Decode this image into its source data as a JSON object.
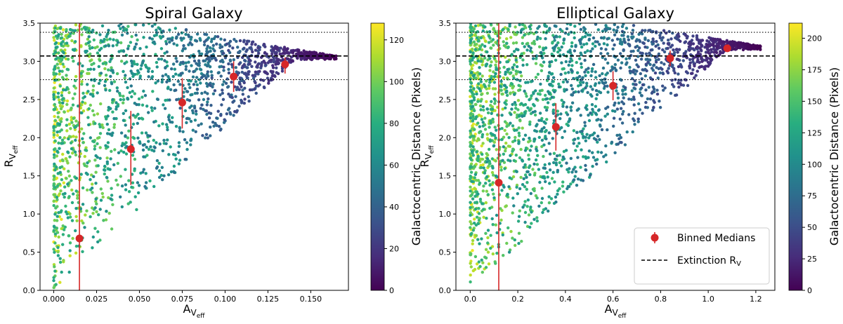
{
  "chart_data": [
    {
      "type": "scatter",
      "title": "Spiral Galaxy",
      "xlabel": "A",
      "xlabel_subscript": "V",
      "xlabel_subsubscript": "eff",
      "ylabel": "R",
      "ylabel_subscript": "V",
      "ylabel_subsubscript": "eff",
      "xlim": [
        -0.008,
        0.172
      ],
      "ylim": [
        0.0,
        3.5
      ],
      "xticks": [
        "0.000",
        "0.025",
        "0.050",
        "0.075",
        "0.100",
        "0.125",
        "0.150"
      ],
      "xtick_values": [
        0.0,
        0.025,
        0.05,
        0.075,
        0.1,
        0.125,
        0.15
      ],
      "yticks": [
        "0.0",
        "0.5",
        "1.0",
        "1.5",
        "2.0",
        "2.5",
        "3.0",
        "3.5"
      ],
      "ytick_values": [
        0.0,
        0.5,
        1.0,
        1.5,
        2.0,
        2.5,
        3.0,
        3.5
      ],
      "reference_line_dashed": 3.07,
      "reference_lines_dotted": [
        2.76,
        3.38
      ],
      "colorbar": {
        "label": "Galactocentric Distance (Pixels)",
        "range": [
          0,
          128
        ],
        "ticks": [
          "0",
          "20",
          "40",
          "60",
          "80",
          "100",
          "120"
        ],
        "tick_values": [
          0,
          20,
          40,
          60,
          80,
          100,
          120
        ],
        "colormap": "viridis"
      },
      "binned_medians": [
        {
          "x": 0.015,
          "y": 0.68,
          "yerr_low": 0.0,
          "yerr_high": 3.5
        },
        {
          "x": 0.045,
          "y": 1.85,
          "yerr_low": 1.38,
          "yerr_high": 2.35
        },
        {
          "x": 0.075,
          "y": 2.46,
          "yerr_low": 2.12,
          "yerr_high": 2.78
        },
        {
          "x": 0.105,
          "y": 2.8,
          "yerr_low": 2.6,
          "yerr_high": 3.0
        },
        {
          "x": 0.135,
          "y": 2.96,
          "yerr_low": 2.84,
          "yerr_high": 3.05
        }
      ],
      "scatter_envelope": {
        "x_max": 0.165,
        "y_plateau": 3.07,
        "slope": 33,
        "n_points": 1800
      }
    },
    {
      "type": "scatter",
      "title": "Elliptical Galaxy",
      "xlabel": "A",
      "xlabel_subscript": "V",
      "xlabel_subsubscript": "eff",
      "ylabel": "R",
      "ylabel_subscript": "V",
      "ylabel_subsubscript": "eff",
      "xlim": [
        -0.06,
        1.28
      ],
      "ylim": [
        0.0,
        3.5
      ],
      "xticks": [
        "0.0",
        "0.2",
        "0.4",
        "0.6",
        "0.8",
        "1.0",
        "1.2"
      ],
      "xtick_values": [
        0.0,
        0.2,
        0.4,
        0.6,
        0.8,
        1.0,
        1.2
      ],
      "yticks": [
        "0.0",
        "0.5",
        "1.0",
        "1.5",
        "2.0",
        "2.5",
        "3.0",
        "3.5"
      ],
      "ytick_values": [
        0.0,
        0.5,
        1.0,
        1.5,
        2.0,
        2.5,
        3.0,
        3.5
      ],
      "reference_line_dashed": 3.07,
      "reference_lines_dotted": [
        2.76,
        3.38
      ],
      "colorbar": {
        "label": "Galactocentric Distance (Pixels)",
        "range": [
          0,
          212
        ],
        "ticks": [
          "0",
          "25",
          "50",
          "75",
          "100",
          "125",
          "150",
          "175",
          "200"
        ],
        "tick_values": [
          0,
          25,
          50,
          75,
          100,
          125,
          150,
          175,
          200
        ],
        "colormap": "viridis"
      },
      "binned_medians": [
        {
          "x": 0.12,
          "y": 1.41,
          "yerr_low": 0.0,
          "yerr_high": 3.5
        },
        {
          "x": 0.36,
          "y": 2.14,
          "yerr_low": 1.83,
          "yerr_high": 2.45
        },
        {
          "x": 0.6,
          "y": 2.68,
          "yerr_low": 2.49,
          "yerr_high": 2.87
        },
        {
          "x": 0.84,
          "y": 3.04,
          "yerr_low": 2.94,
          "yerr_high": 3.14
        },
        {
          "x": 1.08,
          "y": 3.17,
          "yerr_low": 3.13,
          "yerr_high": 3.21
        }
      ],
      "scatter_envelope": {
        "x_max": 1.22,
        "y_plateau": 3.2,
        "slope": 4.5,
        "n_points": 2200
      },
      "legend": {
        "position": "lower-right",
        "entries": [
          {
            "label": "Binned Medians",
            "style": "marker-errorbar",
            "color": "#d62728"
          },
          {
            "label": "Extinction R",
            "label_subscript": "V",
            "style": "dashed",
            "color": "#000000"
          }
        ]
      }
    }
  ],
  "colors": {
    "median_marker": "#d62728",
    "reference_line": "#000000"
  }
}
